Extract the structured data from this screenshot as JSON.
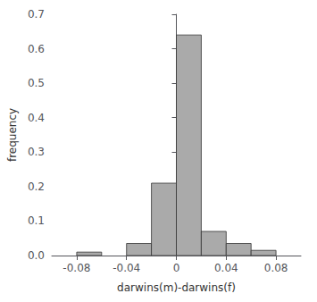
{
  "chart_data": {
    "type": "histogram",
    "bins": [
      -0.1,
      -0.08,
      -0.06,
      -0.04,
      -0.02,
      0.0,
      0.02,
      0.04,
      0.06,
      0.08,
      0.1
    ],
    "values": [
      0.0,
      0.01,
      0.0,
      0.035,
      0.21,
      0.64,
      0.07,
      0.035,
      0.015,
      0.0
    ],
    "color": "#aaaaaa",
    "xlabel": "darwins(m)-darwins(f)",
    "ylabel": "frequency",
    "xlim": [
      -0.1,
      0.1
    ],
    "ylim": [
      0.0,
      0.7
    ],
    "xticks": [
      -0.08,
      -0.04,
      0,
      0.04,
      0.08
    ],
    "yticks": [
      {
        "value": 0,
        "label": "0.0"
      },
      0.1,
      0.2,
      0.3,
      0.4,
      0.5,
      0.6,
      0.7
    ],
    "grid": false
  }
}
